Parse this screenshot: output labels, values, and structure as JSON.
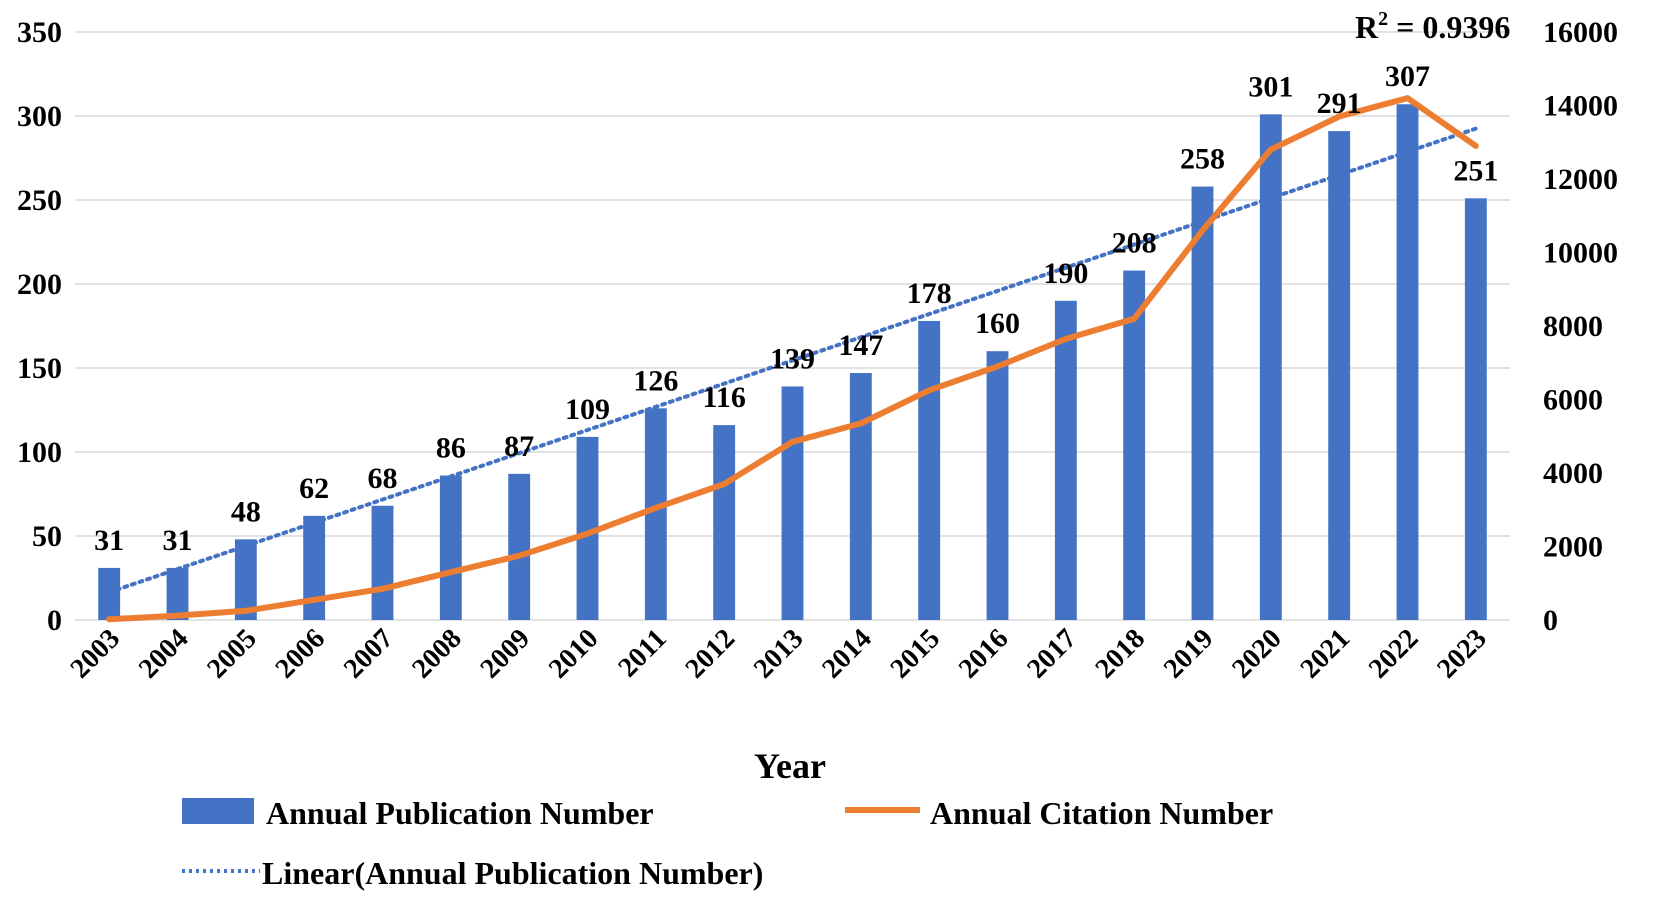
{
  "chart_data": {
    "type": "bar",
    "categories": [
      "2003",
      "2004",
      "2005",
      "2006",
      "2007",
      "2008",
      "2009",
      "2010",
      "2011",
      "2012",
      "2013",
      "2014",
      "2015",
      "2016",
      "2017",
      "2018",
      "2019",
      "2020",
      "2021",
      "2022",
      "2023"
    ],
    "series": [
      {
        "name": "Annual Publication Number",
        "type": "bar",
        "axis": "left",
        "color": "#4472C4",
        "values": [
          31,
          31,
          48,
          62,
          68,
          86,
          87,
          109,
          126,
          116,
          139,
          147,
          178,
          160,
          190,
          208,
          258,
          301,
          291,
          307,
          251
        ]
      },
      {
        "name": "Annual Citation Number",
        "type": "line",
        "axis": "right",
        "color": "#ED7D31",
        "values": [
          20,
          120,
          250,
          550,
          850,
          1300,
          1750,
          2350,
          3050,
          3700,
          4850,
          5350,
          6250,
          6900,
          7650,
          8200,
          10600,
          12800,
          13700,
          14200,
          12900
        ]
      },
      {
        "name": "Linear(Annual Publication Number)",
        "type": "trendline",
        "axis": "left",
        "color": "#4472C4",
        "start": 16.5,
        "end": 292.5
      }
    ],
    "xlabel": "Year",
    "ylabel_left": "",
    "ylabel_right": "",
    "ylim_left": [
      0,
      350
    ],
    "yticks_left": [
      "0",
      "50",
      "100",
      "150",
      "200",
      "250",
      "300",
      "350"
    ],
    "ylim_right": [
      0,
      16000
    ],
    "yticks_right": [
      "0",
      "2000",
      "4000",
      "6000",
      "8000",
      "10000",
      "12000",
      "14000",
      "16000"
    ],
    "annotation": {
      "r2_prefix": "R",
      "r2_sup": "2",
      "r2_value": " = 0.9396"
    },
    "legend": {
      "position": "bottom",
      "entries": [
        "Annual Publication Number",
        "Annual Citation Number",
        "Linear(Annual Publication Number)"
      ]
    },
    "grid": true
  }
}
